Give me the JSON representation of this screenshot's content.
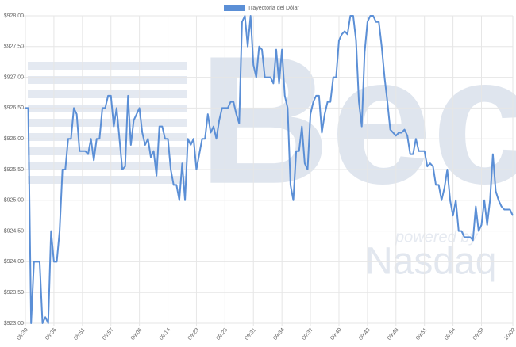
{
  "chart_data": {
    "type": "line",
    "legend_position": "top",
    "grid": true,
    "watermark": {
      "brand": "Bec",
      "tagline": "powered by",
      "partner": "Nasdaq"
    },
    "categories": [
      "08:30",
      null,
      null,
      null,
      null,
      null,
      null,
      null,
      null,
      null,
      "08:36",
      null,
      null,
      null,
      null,
      null,
      null,
      null,
      null,
      null,
      "08:51",
      null,
      null,
      null,
      null,
      null,
      null,
      null,
      null,
      null,
      "08:57",
      null,
      null,
      null,
      null,
      null,
      null,
      null,
      null,
      null,
      "09:06",
      null,
      null,
      null,
      null,
      null,
      null,
      null,
      null,
      null,
      "09:14",
      null,
      null,
      null,
      null,
      null,
      null,
      null,
      null,
      null,
      "09:23",
      null,
      null,
      null,
      null,
      null,
      null,
      null,
      null,
      null,
      "09:28",
      null,
      null,
      null,
      null,
      null,
      null,
      null,
      null,
      null,
      "09:31",
      null,
      null,
      null,
      null,
      null,
      null,
      null,
      null,
      null,
      "09:34",
      null,
      null,
      null,
      null,
      null,
      null,
      null,
      null,
      null,
      "09:37",
      null,
      null,
      null,
      null,
      null,
      null,
      null,
      null,
      null,
      "09:40",
      null,
      null,
      null,
      null,
      null,
      null,
      null,
      null,
      null,
      "09:43",
      null,
      null,
      null,
      null,
      null,
      null,
      null,
      null,
      null,
      "09:48",
      null,
      null,
      null,
      null,
      null,
      null,
      null,
      null,
      null,
      "09:51",
      null,
      null,
      null,
      null,
      null,
      null,
      null,
      null,
      null,
      "09:54",
      null,
      null,
      null,
      null,
      null,
      null,
      null,
      null,
      null,
      "09:58",
      null,
      null,
      null,
      null,
      null,
      null,
      null,
      null,
      null,
      null,
      "10:02"
    ],
    "series": [
      {
        "name": "Trayectoria del Dólar",
        "color": "#5b8fd6",
        "values": [
          926.5,
          926.5,
          923.0,
          924.0,
          924.0,
          924.0,
          923.0,
          923.1,
          923.0,
          924.5,
          924.0,
          924.0,
          924.5,
          925.5,
          925.5,
          926.0,
          926.0,
          926.5,
          926.4,
          925.8,
          925.8,
          925.8,
          925.75,
          926.0,
          925.65,
          926.0,
          926.0,
          926.5,
          926.5,
          926.7,
          926.7,
          926.2,
          926.5,
          926.0,
          925.5,
          925.55,
          926.7,
          925.9,
          926.3,
          926.4,
          926.5,
          926.1,
          925.9,
          926.0,
          925.7,
          925.8,
          925.4,
          926.2,
          926.2,
          926.0,
          926.0,
          925.5,
          925.25,
          925.25,
          925.0,
          925.6,
          925.0,
          926.0,
          925.9,
          926.0,
          925.5,
          925.75,
          926.0,
          926.0,
          926.4,
          926.1,
          926.2,
          926.0,
          926.3,
          926.5,
          926.5,
          926.5,
          926.6,
          926.6,
          926.4,
          926.25,
          927.9,
          928.0,
          927.5,
          928.0,
          927.2,
          927.0,
          927.5,
          927.45,
          927.0,
          927.0,
          927.0,
          926.9,
          927.45,
          926.9,
          927.45,
          926.7,
          926.5,
          925.25,
          925.0,
          925.8,
          925.8,
          926.2,
          925.6,
          925.5,
          926.4,
          926.6,
          926.7,
          926.7,
          926.1,
          926.4,
          926.6,
          926.6,
          927.0,
          927.0,
          927.6,
          927.7,
          927.75,
          927.7,
          928.0,
          928.0,
          927.6,
          926.6,
          926.2,
          927.4,
          927.9,
          928.0,
          928.0,
          927.9,
          927.9,
          927.5,
          927.0,
          926.6,
          926.15,
          926.1,
          926.05,
          926.1,
          926.1,
          926.15,
          926.05,
          925.75,
          925.75,
          926.0,
          925.8,
          925.8,
          925.8,
          925.55,
          925.6,
          925.55,
          925.25,
          925.25,
          925.0,
          925.2,
          925.5,
          925.0,
          924.75,
          925.0,
          924.5,
          924.5,
          924.4,
          924.4,
          924.4,
          924.35,
          924.9,
          924.5,
          924.6,
          925.0,
          924.6,
          925.0,
          925.75,
          925.15,
          925.0,
          924.9,
          924.85,
          924.85,
          924.85,
          924.75
        ]
      }
    ],
    "ylim": [
      923,
      928
    ],
    "yticks": [
      {
        "value": 923,
        "label": "$923,00"
      },
      {
        "value": 923.5,
        "label": "$923,50"
      },
      {
        "value": 924,
        "label": "$924,00"
      },
      {
        "value": 924.5,
        "label": "$924,50"
      },
      {
        "value": 925,
        "label": "$925,00"
      },
      {
        "value": 925.5,
        "label": "$925,50"
      },
      {
        "value": 926,
        "label": "$926,00"
      },
      {
        "value": 926.5,
        "label": "$926,50"
      },
      {
        "value": 927,
        "label": "$927,00"
      },
      {
        "value": 927.5,
        "label": "$927,50"
      },
      {
        "value": 928,
        "label": "$928,00"
      }
    ]
  }
}
